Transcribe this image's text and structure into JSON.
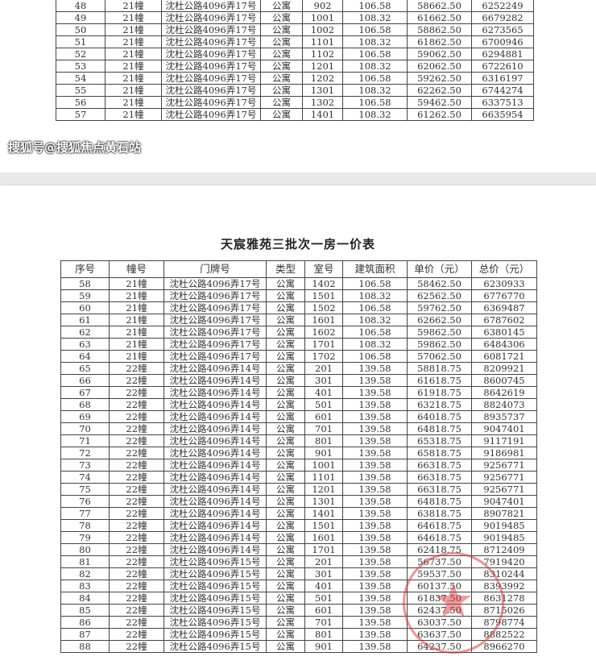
{
  "title": "天宸雅苑三批次一房一价表",
  "headers": [
    "序号",
    "幢号",
    "门牌号",
    "类型",
    "室号",
    "建筑面积",
    "单价（元）",
    "总价（元）"
  ],
  "table1_rows": [
    [
      "48",
      "21幢",
      "沈杜公路4096弄17号",
      "公寓",
      "902",
      "106.58",
      "58662.50",
      "6252249"
    ],
    [
      "49",
      "21幢",
      "沈杜公路4096弄17号",
      "公寓",
      "1001",
      "108.32",
      "61662.50",
      "6679282"
    ],
    [
      "50",
      "21幢",
      "沈杜公路4096弄17号",
      "公寓",
      "1002",
      "106.58",
      "58862.50",
      "6273565"
    ],
    [
      "51",
      "21幢",
      "沈杜公路4096弄17号",
      "公寓",
      "1101",
      "108.32",
      "61862.50",
      "6700946"
    ],
    [
      "52",
      "21幢",
      "沈杜公路4096弄17号",
      "公寓",
      "1102",
      "106.58",
      "59062.50",
      "6294881"
    ],
    [
      "53",
      "21幢",
      "沈杜公路4096弄17号",
      "公寓",
      "1201",
      "108.32",
      "62062.50",
      "6722610"
    ],
    [
      "54",
      "21幢",
      "沈杜公路4096弄17号",
      "公寓",
      "1202",
      "106.58",
      "59262.50",
      "6316197"
    ],
    [
      "55",
      "21幢",
      "沈杜公路4096弄17号",
      "公寓",
      "1301",
      "108.32",
      "62262.50",
      "6744274"
    ],
    [
      "56",
      "21幢",
      "沈杜公路4096弄17号",
      "公寓",
      "1302",
      "106.58",
      "59462.50",
      "6337513"
    ],
    [
      "57",
      "21幢",
      "沈杜公路4096弄17号",
      "公寓",
      "1401",
      "108.32",
      "61262.50",
      "6635954"
    ]
  ],
  "table2_rows": [
    [
      "58",
      "21幢",
      "沈杜公路4096弄17号",
      "公寓",
      "1402",
      "106.58",
      "58462.50",
      "6230933"
    ],
    [
      "59",
      "21幢",
      "沈杜公路4096弄17号",
      "公寓",
      "1501",
      "108.32",
      "62562.50",
      "6776770"
    ],
    [
      "60",
      "21幢",
      "沈杜公路4096弄17号",
      "公寓",
      "1502",
      "106.58",
      "59762.50",
      "6369487"
    ],
    [
      "61",
      "21幢",
      "沈杜公路4096弄17号",
      "公寓",
      "1601",
      "108.32",
      "62662.50",
      "6787602"
    ],
    [
      "62",
      "21幢",
      "沈杜公路4096弄17号",
      "公寓",
      "1602",
      "106.58",
      "59862.50",
      "6380145"
    ],
    [
      "63",
      "21幢",
      "沈杜公路4096弄17号",
      "公寓",
      "1701",
      "108.32",
      "59862.50",
      "6484306"
    ],
    [
      "64",
      "21幢",
      "沈杜公路4096弄17号",
      "公寓",
      "1702",
      "106.58",
      "57062.50",
      "6081721"
    ],
    [
      "65",
      "22幢",
      "沈杜公路4096弄14号",
      "公寓",
      "201",
      "139.58",
      "58818.75",
      "8209921"
    ],
    [
      "66",
      "22幢",
      "沈杜公路4096弄14号",
      "公寓",
      "301",
      "139.58",
      "61618.75",
      "8600745"
    ],
    [
      "67",
      "22幢",
      "沈杜公路4096弄14号",
      "公寓",
      "401",
      "139.58",
      "61918.75",
      "8642619"
    ],
    [
      "68",
      "22幢",
      "沈杜公路4096弄14号",
      "公寓",
      "501",
      "139.58",
      "63218.75",
      "8824073"
    ],
    [
      "69",
      "22幢",
      "沈杜公路4096弄14号",
      "公寓",
      "601",
      "139.58",
      "64018.75",
      "8935737"
    ],
    [
      "70",
      "22幢",
      "沈杜公路4096弄14号",
      "公寓",
      "701",
      "139.58",
      "64818.75",
      "9047401"
    ],
    [
      "71",
      "22幢",
      "沈杜公路4096弄14号",
      "公寓",
      "801",
      "139.58",
      "65318.75",
      "9117191"
    ],
    [
      "72",
      "22幢",
      "沈杜公路4096弄14号",
      "公寓",
      "901",
      "139.58",
      "65818.75",
      "9186981"
    ],
    [
      "73",
      "22幢",
      "沈杜公路4096弄14号",
      "公寓",
      "1001",
      "139.58",
      "66318.75",
      "9256771"
    ],
    [
      "74",
      "22幢",
      "沈杜公路4096弄14号",
      "公寓",
      "1101",
      "139.58",
      "66318.75",
      "9256771"
    ],
    [
      "75",
      "22幢",
      "沈杜公路4096弄14号",
      "公寓",
      "1201",
      "139.58",
      "66318.75",
      "9256771"
    ],
    [
      "76",
      "22幢",
      "沈杜公路4096弄14号",
      "公寓",
      "1301",
      "139.58",
      "64818.75",
      "9047401"
    ],
    [
      "77",
      "22幢",
      "沈杜公路4096弄14号",
      "公寓",
      "1401",
      "139.58",
      "63818.75",
      "8907821"
    ],
    [
      "78",
      "22幢",
      "沈杜公路4096弄14号",
      "公寓",
      "1501",
      "139.58",
      "64618.75",
      "9019485"
    ],
    [
      "79",
      "22幢",
      "沈杜公路4096弄14号",
      "公寓",
      "1601",
      "139.58",
      "64618.75",
      "9019485"
    ],
    [
      "80",
      "22幢",
      "沈杜公路4096弄14号",
      "公寓",
      "1701",
      "139.58",
      "62418.75",
      "8712409"
    ],
    [
      "81",
      "22幢",
      "沈杜公路4096弄15号",
      "公寓",
      "201",
      "139.58",
      "56737.50",
      "7919420"
    ],
    [
      "82",
      "22幢",
      "沈杜公路4096弄15号",
      "公寓",
      "301",
      "139.58",
      "59537.50",
      "8310244"
    ],
    [
      "83",
      "22幢",
      "沈杜公路4096弄15号",
      "公寓",
      "401",
      "139.58",
      "60137.50",
      "8393992"
    ],
    [
      "84",
      "22幢",
      "沈杜公路4096弄15号",
      "公寓",
      "501",
      "139.58",
      "61837.50",
      "8631278"
    ],
    [
      "85",
      "22幢",
      "沈杜公路4096弄15号",
      "公寓",
      "601",
      "139.58",
      "62437.50",
      "8715026"
    ],
    [
      "86",
      "22幢",
      "沈杜公路4096弄15号",
      "公寓",
      "701",
      "139.58",
      "63037.50",
      "8798774"
    ],
    [
      "87",
      "22幢",
      "沈杜公路4096弄15号",
      "公寓",
      "801",
      "139.58",
      "63637.50",
      "8882522"
    ],
    [
      "88",
      "22幢",
      "沈杜公路4096弄15号",
      "公寓",
      "901",
      "139.58",
      "64237.50",
      "8966270"
    ]
  ],
  "watermark": "搜狐号@搜狐焦点黄石站",
  "colors": {
    "stamp": "#dc3c3c"
  }
}
